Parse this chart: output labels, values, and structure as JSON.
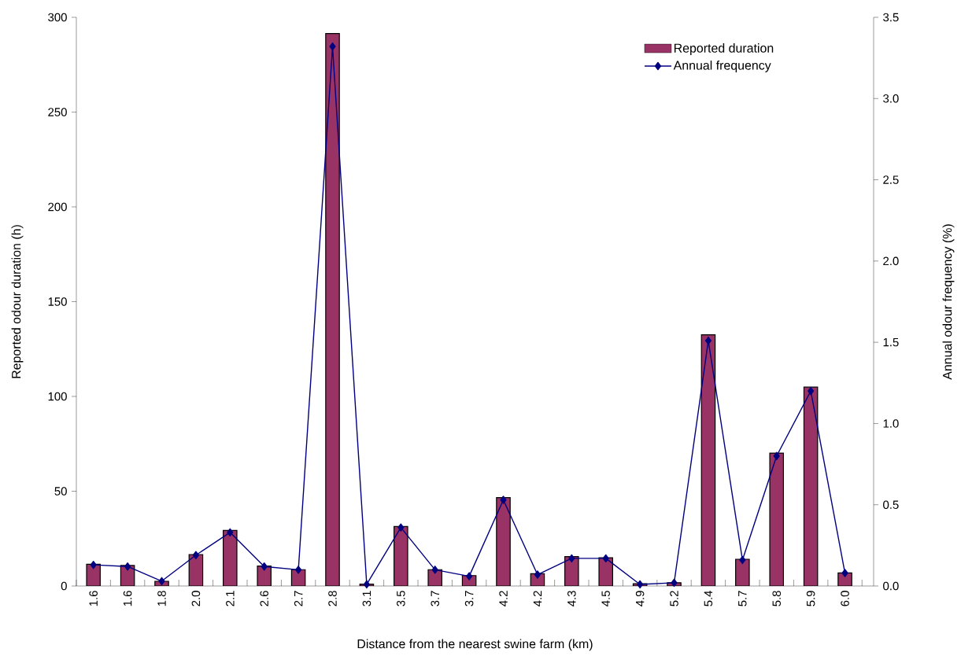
{
  "chart_data": {
    "type": "bar",
    "xlabel": "Distance from the nearest swine farm (km)",
    "ylabel": "Reported odour duration (h)",
    "y2label": "Annual odour frequency (%)",
    "categories": [
      "1.6",
      "1.6",
      "1.8",
      "2.0",
      "2.1",
      "2.6",
      "2.7",
      "2.8",
      "3.1",
      "3.5",
      "3.7",
      "3.7",
      "4.2",
      "4.2",
      "4.3",
      "4.5",
      "4.9",
      "5.2",
      "5.4",
      "5.7",
      "5.8",
      "5.9",
      "6.0"
    ],
    "series": [
      {
        "name": "Reported duration",
        "color": "#993366",
        "values": [
          11.5,
          10.8,
          2.5,
          16.6,
          29.3,
          10.5,
          8.6,
          291.4,
          1.0,
          31.4,
          8.6,
          5.5,
          46.6,
          6.5,
          15.5,
          14.9,
          1.2,
          1.7,
          132.5,
          14.1,
          70.1,
          104.9,
          6.9
        ]
      },
      {
        "name": "Annual frequency",
        "type": "line",
        "axis": "y2",
        "color": "#000080",
        "marker": "diamond",
        "values": [
          0.13,
          0.12,
          0.03,
          0.19,
          0.33,
          0.12,
          0.1,
          3.32,
          0.01,
          0.36,
          0.1,
          0.06,
          0.53,
          0.07,
          0.17,
          0.17,
          0.01,
          0.02,
          1.51,
          0.16,
          0.8,
          1.2,
          0.08
        ]
      }
    ],
    "ylim": [
      0,
      300
    ],
    "yticks": [
      0,
      50,
      100,
      150,
      200,
      250,
      300
    ],
    "y2lim": [
      0,
      3.5
    ],
    "y2ticks": [
      {
        "value": 0,
        "label": "0.0"
      },
      {
        "value": 0.5,
        "label": "0.5"
      },
      {
        "value": 1,
        "label": "1.0"
      },
      {
        "value": 1.5,
        "label": "1.5"
      },
      {
        "value": 2,
        "label": "2.0"
      },
      {
        "value": 2.5,
        "label": "2.5"
      },
      {
        "value": 3,
        "label": "3.0"
      },
      {
        "value": 3.5,
        "label": "3.5"
      }
    ],
    "legend": "top right",
    "grid": false
  }
}
